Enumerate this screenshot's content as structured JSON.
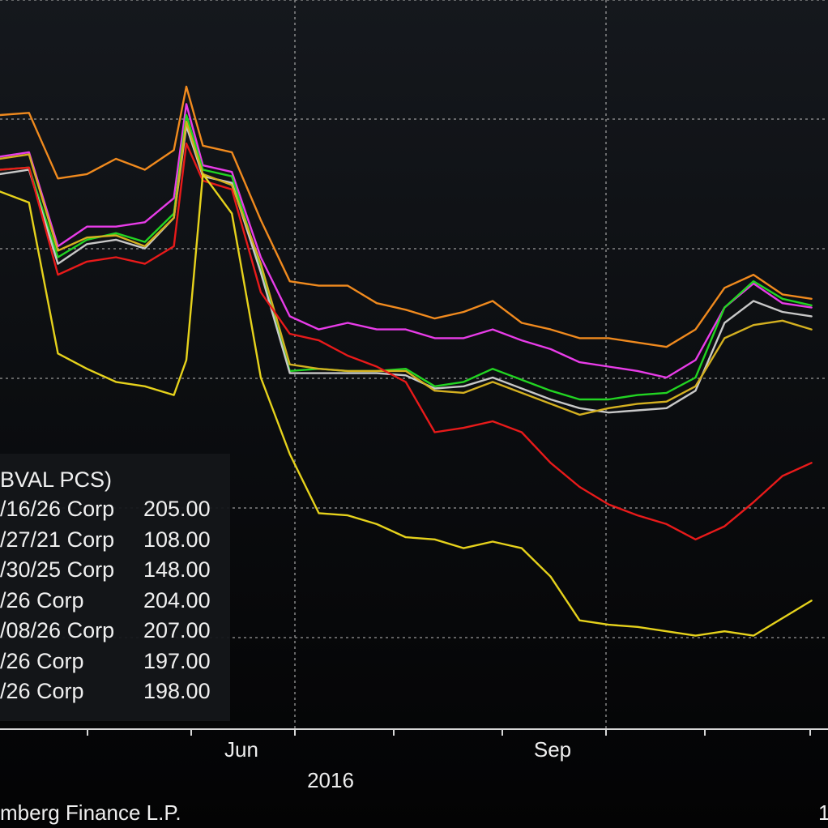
{
  "legend": {
    "header": "BVAL PCS)",
    "rows": [
      {
        "name": "/16/26 Corp",
        "value": "205.00"
      },
      {
        "name": "/27/21 Corp",
        "value": "108.00"
      },
      {
        "name": "/30/25 Corp",
        "value": "148.00"
      },
      {
        "name": "/26 Corp",
        "value": "204.00"
      },
      {
        "name": "/08/26 Corp",
        "value": "207.00"
      },
      {
        "name": "/26 Corp",
        "value": "197.00"
      },
      {
        "name": "/26 Corp",
        "value": "198.00"
      }
    ]
  },
  "footer": {
    "source": "mberg Finance L.P.",
    "page_number": "1"
  },
  "chart_data": {
    "type": "line",
    "title": "",
    "xlabel": "",
    "ylabel": "",
    "x_tick_labels": [
      "Jun",
      "Sep"
    ],
    "x_year_label": "2016",
    "grid": true,
    "legend_position": "bottom-left",
    "x": [
      "2016-04-19",
      "2016-04-26",
      "2016-05-03",
      "2016-05-10",
      "2016-05-17",
      "2016-05-24",
      "2016-05-31",
      "2016-06-03",
      "2016-06-07",
      "2016-06-14",
      "2016-06-21",
      "2016-06-28",
      "2016-07-05",
      "2016-07-12",
      "2016-07-19",
      "2016-07-26",
      "2016-08-02",
      "2016-08-09",
      "2016-08-16",
      "2016-08-23",
      "2016-08-30",
      "2016-09-06",
      "2016-09-13",
      "2016-09-20",
      "2016-09-27",
      "2016-10-04",
      "2016-10-11",
      "2016-10-18",
      "2016-10-25",
      "2016-11-01"
    ],
    "series": [
      {
        "color": "#f08a1e",
        "values": [
          310,
          311,
          281,
          283,
          290,
          285,
          294,
          323,
          296,
          293,
          262,
          234,
          232,
          232,
          224,
          221,
          217,
          220,
          225,
          215,
          212,
          208,
          208,
          206,
          204,
          212,
          231,
          237,
          228,
          226
        ]
      },
      {
        "color": "#e83ce8",
        "values": [
          291,
          293,
          250,
          259,
          259,
          261,
          272,
          315,
          287,
          284,
          245,
          218,
          212,
          215,
          212,
          212,
          208,
          208,
          212,
          207,
          203,
          197,
          195,
          193,
          190,
          198,
          222,
          233,
          224,
          222
        ]
      },
      {
        "color": "#22d422",
        "values": [
          285,
          286,
          245,
          253,
          256,
          252,
          265,
          310,
          285,
          282,
          240,
          193,
          194,
          193,
          193,
          194,
          186,
          188,
          194,
          189,
          184,
          180,
          180,
          182,
          183,
          190,
          222,
          234,
          226,
          223
        ]
      },
      {
        "color": "#c8c8c8",
        "values": [
          283,
          285,
          242,
          251,
          253,
          249,
          263,
          305,
          282,
          279,
          238,
          192,
          192,
          192,
          192,
          191,
          185,
          186,
          190,
          185,
          180,
          176,
          174,
          175,
          176,
          184,
          215,
          225,
          220,
          218
        ]
      },
      {
        "color": "#d4b020",
        "values": [
          290,
          292,
          248,
          254,
          255,
          250,
          263,
          307,
          283,
          278,
          242,
          196,
          194,
          193,
          193,
          193,
          184,
          183,
          188,
          183,
          178,
          173,
          176,
          178,
          179,
          186,
          208,
          214,
          216,
          212
        ]
      },
      {
        "color": "#e81a1a",
        "values": [
          285,
          286,
          237,
          243,
          245,
          242,
          250,
          297,
          280,
          276,
          229,
          210,
          207,
          200,
          195,
          188,
          165,
          167,
          170,
          165,
          151,
          140,
          132,
          127,
          123,
          116,
          122,
          133,
          145,
          151
        ]
      },
      {
        "color": "#e6d21c",
        "values": [
          275,
          270,
          201,
          194,
          188,
          186,
          182,
          198,
          283,
          265,
          190,
          155,
          128,
          127,
          123,
          117,
          116,
          112,
          115,
          112,
          99,
          79,
          77,
          76,
          74,
          72,
          74,
          72,
          80,
          88
        ]
      }
    ]
  }
}
